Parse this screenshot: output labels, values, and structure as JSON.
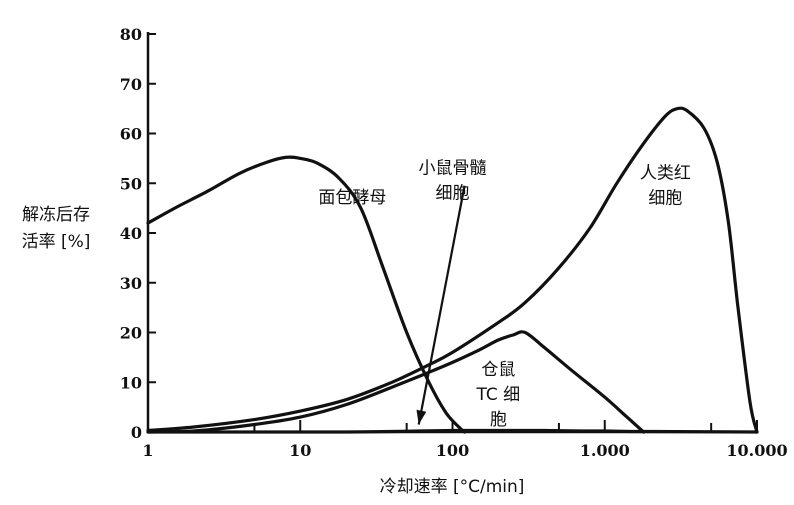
{
  "chart_data": {
    "type": "line",
    "xlabel": "冷却速率 [°C/min]",
    "ylabel": [
      "解冻后存",
      "活率 [%]"
    ],
    "xscale": "log",
    "xlim": [
      1,
      10000
    ],
    "ylim": [
      0,
      80
    ],
    "x_ticks": [
      {
        "value": 1,
        "label": "1"
      },
      {
        "value": 10,
        "label": "10"
      },
      {
        "value": 100,
        "label": "100"
      },
      {
        "value": 1000,
        "label": "1.000"
      },
      {
        "value": 10000,
        "label": "10.000"
      }
    ],
    "y_ticks": [
      0,
      10,
      20,
      30,
      40,
      50,
      60,
      70,
      80
    ],
    "grid": false,
    "series": [
      {
        "label": [
          "面包酵母"
        ],
        "label_anchor": [
          22,
          46
        ],
        "x": [
          1,
          1.5,
          2.5,
          4,
          6,
          8,
          10,
          13,
          18,
          25,
          35,
          50,
          70,
          90,
          110,
          120
        ],
        "y": [
          42,
          45,
          48.5,
          52,
          54.2,
          55.2,
          55,
          54,
          51,
          45,
          33,
          20,
          10,
          4,
          1,
          0
        ]
      },
      {
        "label": [
          "小鼠骨髓",
          "细胞"
        ],
        "label_anchor": [
          100,
          52
        ],
        "x": [
          1,
          2,
          5,
          10,
          20,
          40,
          60,
          100,
          160,
          250,
          400,
          700,
          1000,
          1500,
          2000,
          10000
        ],
        "y": [
          0,
          0,
          0,
          0,
          0,
          0.1,
          0.2,
          0.3,
          0.3,
          0.3,
          0.3,
          0.2,
          0.2,
          0.1,
          0.1,
          0
        ],
        "arrow": {
          "from_x": 120,
          "from_y": 49.5,
          "to_x": 60,
          "to_y": 1.5
        }
      },
      {
        "label": [
          "人类红",
          "细胞"
        ],
        "label_anchor": [
          2500,
          51
        ],
        "x": [
          1,
          2,
          5,
          10,
          20,
          40,
          70,
          100,
          200,
          300,
          500,
          800,
          1200,
          1800,
          2500,
          3000,
          3500,
          4500,
          5500,
          6500,
          7500,
          9000,
          10000
        ],
        "y": [
          0.3,
          1,
          2.5,
          4.2,
          6.5,
          10,
          13.5,
          16,
          22,
          26,
          33,
          41,
          50,
          58,
          63.5,
          65,
          64.5,
          61,
          54,
          42,
          25,
          6,
          0
        ]
      },
      {
        "label": [
          "仓鼠",
          "TC 细",
          "胞"
        ],
        "label_anchor": [
          200,
          11.5
        ],
        "x": [
          1,
          2,
          5,
          10,
          20,
          40,
          70,
          100,
          150,
          200,
          250,
          300,
          400,
          600,
          1000,
          1400,
          1800
        ],
        "y": [
          0,
          0.2,
          1.5,
          3,
          5.5,
          9,
          12,
          14,
          16.5,
          18.5,
          19.5,
          20,
          17,
          12.5,
          7,
          3,
          0
        ]
      }
    ]
  }
}
